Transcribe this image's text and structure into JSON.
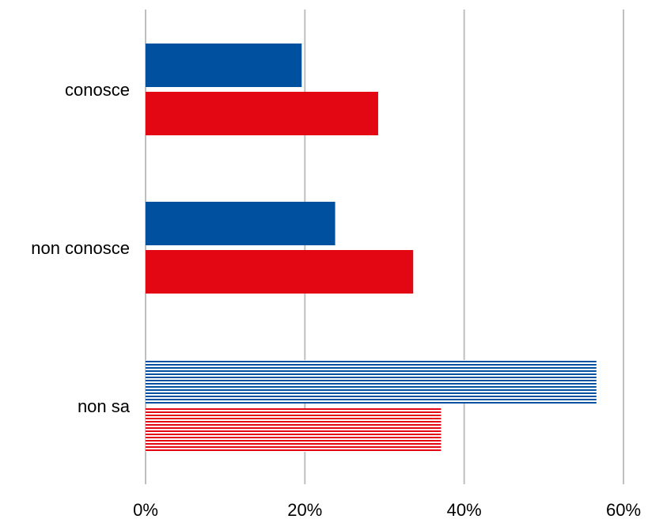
{
  "chart_data": {
    "type": "bar",
    "orientation": "horizontal",
    "categories": [
      "conosce",
      "non conosce",
      "non sa"
    ],
    "series": [
      {
        "color": "#0050A0",
        "values": [
          0.196,
          0.238,
          0.566
        ],
        "hatched": [
          false,
          false,
          true
        ]
      },
      {
        "color": "#E30613",
        "values": [
          0.292,
          0.336,
          0.371
        ],
        "hatched": [
          false,
          false,
          true
        ]
      }
    ],
    "x_ticks": [
      "0%",
      "20%",
      "40%",
      "60%"
    ],
    "xlim": [
      0,
      0.6
    ],
    "grid": "vertical",
    "legend": "none"
  }
}
